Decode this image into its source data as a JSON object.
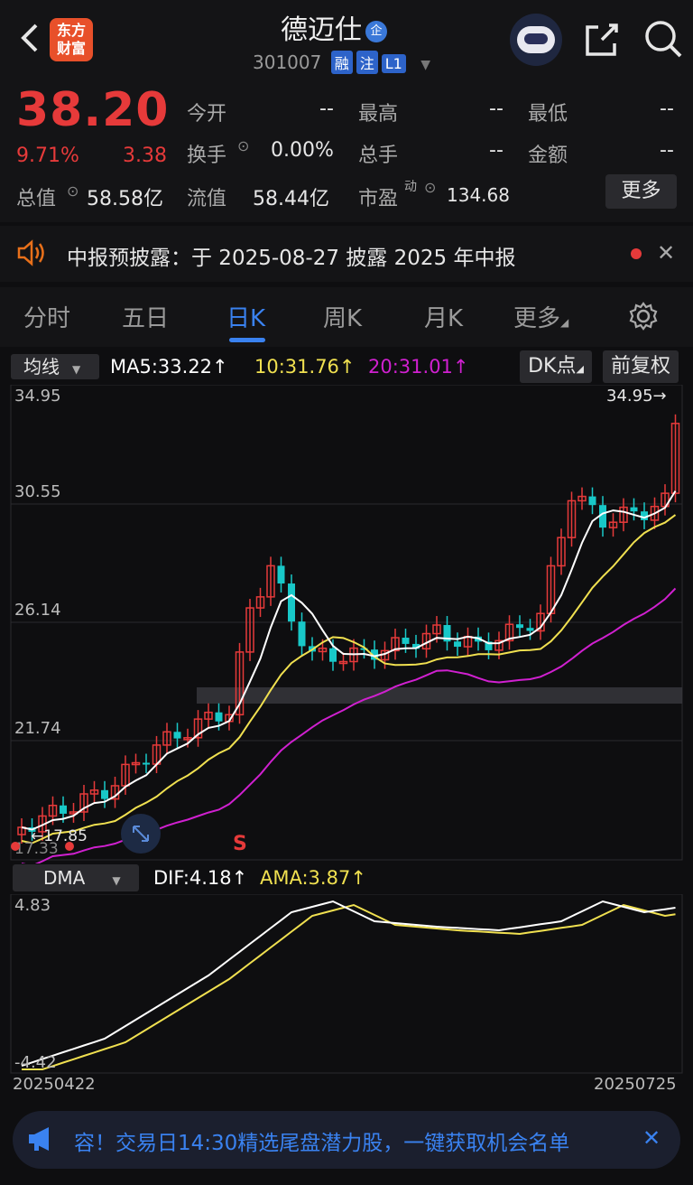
{
  "header": {
    "back_icon": "chevron-left-icon",
    "logo_text": "东方\n财富",
    "stock_name": "德迈仕",
    "enterprise_badge": "企",
    "stock_code": "301007",
    "tags": [
      "融",
      "注",
      "L1"
    ]
  },
  "quote": {
    "price": "38.20",
    "change_pct": "9.71%",
    "change_amt": "3.38",
    "open_label": "今开",
    "open_val": "--",
    "high_label": "最高",
    "high_val": "--",
    "low_label": "最低",
    "low_val": "--",
    "turnover_label": "换手",
    "turnover_val": "0.00%",
    "volume_label": "总手",
    "volume_val": "--",
    "amount_label": "金额",
    "amount_val": "--",
    "mktcap_label": "总值",
    "mktcap_val": "58.58亿",
    "float_label": "流值",
    "float_val": "58.44亿",
    "pe_label": "市盈",
    "pe_sup": "动",
    "pe_val": "134.68",
    "more_label": "更多"
  },
  "notice": {
    "text": "中报预披露：于 2025-08-27 披露 2025 年中报"
  },
  "tabs": [
    "分时",
    "五日",
    "日K",
    "周K",
    "月K",
    "更多"
  ],
  "active_tab": "日K",
  "indicators": {
    "ma_select": "均线",
    "ma5": "MA5:33.22",
    "ma10": "10:31.76",
    "ma20": "20:31.01",
    "dk": "DK点",
    "adjust": "前复权",
    "last_price_tag": "34.95",
    "low_marker": "17.85",
    "low_marker2": "17.33",
    "sell_marker": "S",
    "y_labels": [
      "34.95",
      "30.55",
      "26.14",
      "21.74"
    ],
    "dma_select": "DMA",
    "dif": "DIF:4.18",
    "ama": "AMA:3.87",
    "dma_top": "4.83",
    "dma_bottom": "-4.42",
    "date_start": "20250422",
    "date_end": "20250725"
  },
  "colors": {
    "up": "#e63a3a",
    "down": "#18c8c8",
    "ma5": "#ffffff",
    "ma10": "#f0e050",
    "ma20": "#d020d0",
    "accent": "#3a82f0"
  },
  "banner": {
    "text": "容！交易日14:30精选尾盘潜力股，一键获取机会名单"
  }
}
